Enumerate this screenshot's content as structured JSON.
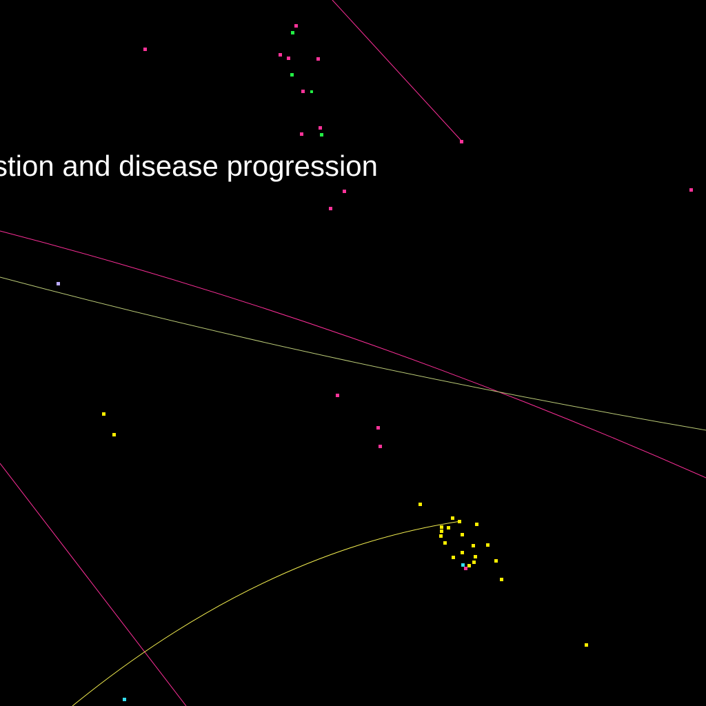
{
  "title": "stion and disease progression",
  "colors": {
    "background": "#000000",
    "magenta": "#ff3399",
    "green": "#22ee44",
    "yellow": "#ffee00",
    "cyan": "#33ddee",
    "lavender": "#bbaaff",
    "olive_line": "#bfcf7a",
    "magenta_line": "#ff2f9a",
    "yellow_line": "#f5f050"
  }
}
